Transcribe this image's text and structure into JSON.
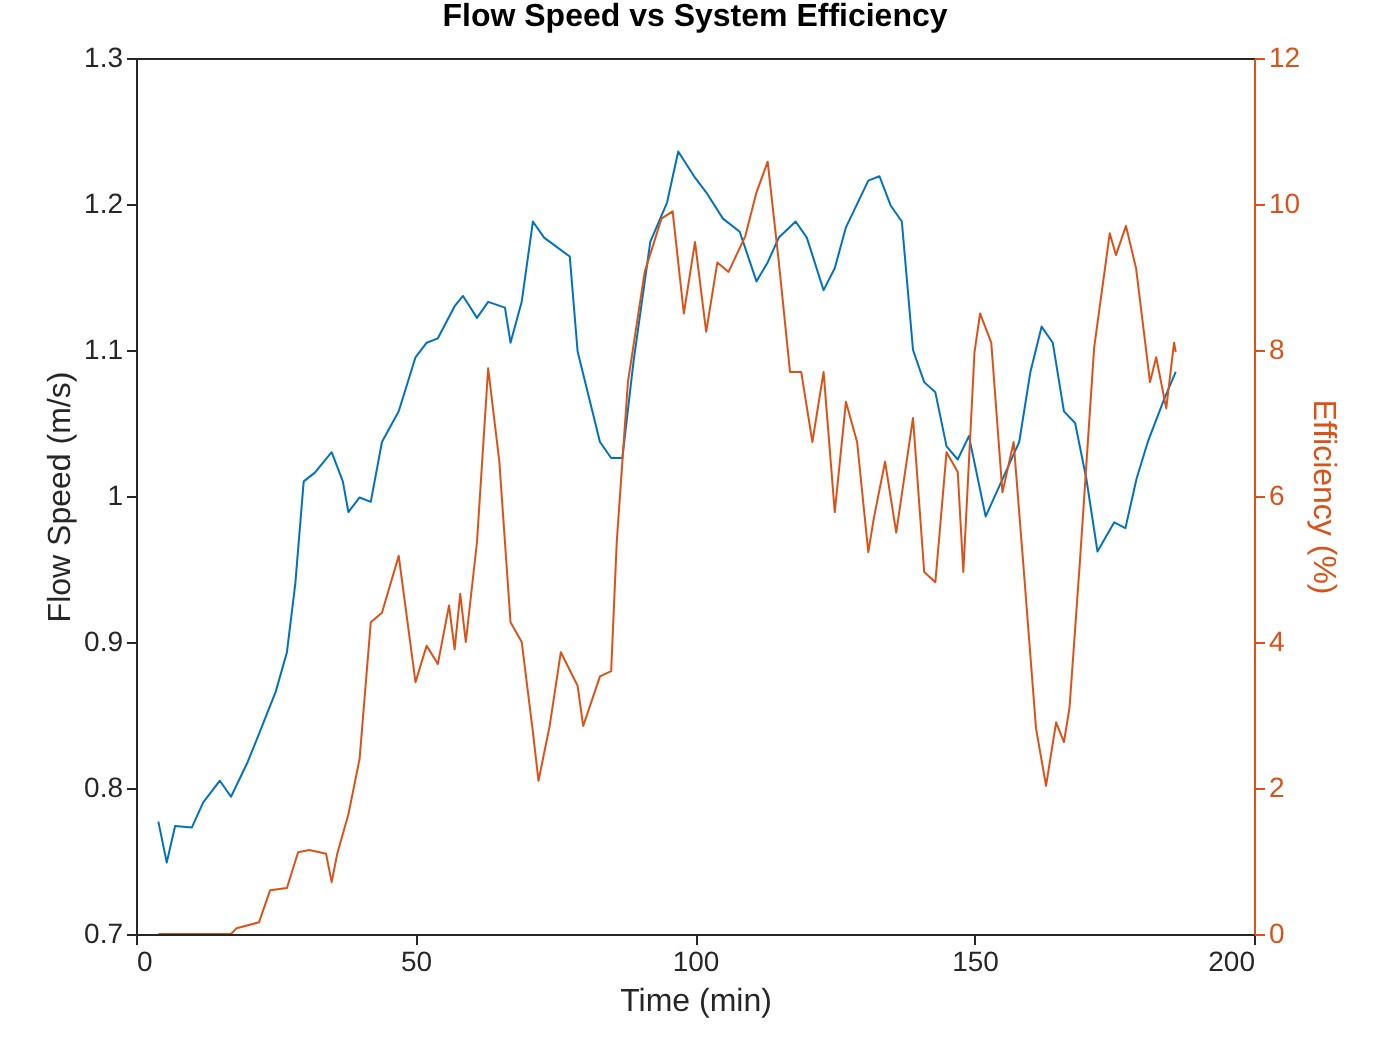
{
  "chart_data": {
    "type": "line",
    "title": "Flow Speed vs System Efficiency",
    "xlabel": "Time (min)",
    "ylabel": "Flow Speed (m/s)",
    "y2label": "Efficiency (%)",
    "xlim": [
      0,
      200
    ],
    "xticks": [
      0,
      50,
      100,
      150,
      200
    ],
    "ylim": [
      0.7,
      1.3
    ],
    "yticks": [
      0.7,
      0.8,
      0.9,
      1,
      1.1,
      1.2,
      1.3
    ],
    "y2lim": [
      0,
      12
    ],
    "y2ticks": [
      0,
      2,
      4,
      6,
      8,
      10,
      12
    ],
    "grid": false,
    "legend": false,
    "series": [
      {
        "color": "#0072bd",
        "x": [
          4,
          5.5,
          7,
          10,
          12,
          15,
          17,
          20,
          22,
          25,
          27,
          28.5,
          30,
          32,
          35,
          37,
          38,
          40,
          42,
          44,
          47,
          50,
          52,
          54,
          57,
          58.5,
          61,
          63,
          66,
          67,
          69,
          71,
          73,
          77.6,
          79,
          83,
          85,
          87,
          89,
          92,
          95,
          97,
          100,
          102,
          105,
          108,
          111,
          113,
          115,
          118,
          120,
          123,
          125,
          127,
          131,
          133,
          135,
          137,
          139,
          141,
          143,
          145,
          147,
          149,
          152,
          154,
          156,
          158,
          160,
          162,
          164,
          166,
          168,
          170,
          172,
          175,
          177,
          179,
          181,
          184,
          186
        ],
        "values": [
          0.777,
          0.749,
          0.774,
          0.773,
          0.79,
          0.805,
          0.794,
          0.818,
          0.837,
          0.866,
          0.893,
          0.94,
          1.01,
          1.016,
          1.03,
          1.01,
          0.989,
          0.999,
          0.996,
          1.037,
          1.058,
          1.095,
          1.105,
          1.108,
          1.13,
          1.137,
          1.122,
          1.133,
          1.129,
          1.105,
          1.133,
          1.188,
          1.177,
          1.164,
          1.099,
          1.037,
          1.026,
          1.026,
          1.092,
          1.174,
          1.201,
          1.236,
          1.218,
          1.208,
          1.19,
          1.181,
          1.147,
          1.16,
          1.177,
          1.188,
          1.177,
          1.141,
          1.156,
          1.184,
          1.216,
          1.219,
          1.199,
          1.188,
          1.1,
          1.078,
          1.071,
          1.034,
          1.025,
          1.041,
          0.986,
          1.003,
          1.02,
          1.037,
          1.085,
          1.116,
          1.105,
          1.058,
          1.05,
          1.012,
          0.962,
          0.982,
          0.978,
          1.012,
          1.037,
          1.067,
          1.085
        ]
      },
      {
        "color": "#d95319",
        "axis": "y2",
        "x": [
          4,
          17,
          18,
          22,
          24,
          27,
          29,
          31,
          34,
          35,
          36,
          38,
          40,
          42,
          44,
          47,
          48,
          50,
          52,
          54,
          56,
          57,
          58,
          59,
          61,
          63,
          65,
          67,
          69,
          71,
          72,
          74,
          76,
          79,
          80,
          83,
          85,
          86,
          88,
          91,
          94,
          96,
          98,
          100,
          102,
          104,
          106,
          109,
          111,
          113,
          115,
          117,
          119,
          121,
          123,
          125,
          127,
          129,
          131,
          132,
          134,
          136,
          139,
          141,
          143,
          145,
          147,
          148,
          150,
          151,
          153,
          155,
          157,
          158.8,
          161,
          162.8,
          164.6,
          166,
          167,
          168.9,
          171.4,
          174.2,
          175.3,
          177.1,
          178.9,
          181.4,
          182.5,
          184.3,
          185.7,
          186
        ],
        "values": [
          0,
          0,
          0.08,
          0.16,
          0.6,
          0.63,
          1.12,
          1.15,
          1.1,
          0.71,
          1.1,
          1.64,
          2.4,
          4.27,
          4.4,
          5.18,
          4.6,
          3.45,
          3.95,
          3.7,
          4.5,
          3.9,
          4.66,
          4.0,
          5.37,
          7.75,
          6.47,
          4.27,
          4.0,
          2.77,
          2.1,
          2.85,
          3.86,
          3.4,
          2.85,
          3.53,
          3.6,
          5.37,
          7.56,
          9.07,
          9.8,
          9.9,
          8.5,
          9.48,
          8.25,
          9.2,
          9.07,
          9.56,
          10.16,
          10.58,
          9.2,
          7.7,
          7.7,
          6.74,
          7.7,
          5.78,
          7.29,
          6.74,
          5.23,
          5.7,
          6.47,
          5.5,
          7.07,
          4.96,
          4.82,
          6.6,
          6.33,
          4.96,
          7.97,
          8.5,
          8.1,
          6.05,
          6.74,
          5.0,
          2.82,
          2.03,
          2.9,
          2.63,
          3.1,
          5.15,
          8.03,
          9.6,
          9.3,
          9.7,
          9.12,
          7.56,
          7.9,
          7.2,
          8.1,
          7.97
        ]
      }
    ]
  }
}
